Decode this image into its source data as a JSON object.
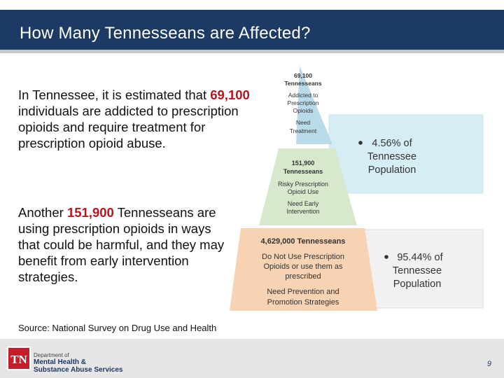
{
  "header": {
    "title": "How Many Tennesseans are Affected?"
  },
  "body": {
    "para1": {
      "before": "In Tennessee, it is estimated that ",
      "number": "69,100",
      "after": " individuals are addicted to prescription opioids and require treatment for prescription opioid abuse."
    },
    "para2": {
      "before": "Another ",
      "number": "151,900",
      "after": " Tennesseans are using prescription opioids in ways that could be harmful, and they may benefit from early intervention strategies."
    }
  },
  "pyramid": {
    "top": {
      "count": "69,100",
      "group": "Tennesseans",
      "desc1": "Addicted to",
      "desc2": "Prescription",
      "desc3": "Opioids",
      "need1": "Need",
      "need2": "Treatment"
    },
    "middle": {
      "count": "151,900",
      "group": "Tennesseans",
      "desc1": "Risky Prescription",
      "desc2": "Opioid Use",
      "need1": "Need Early",
      "need2": "Intervention"
    },
    "bottom": {
      "count": "4,629,000 Tennesseans",
      "desc1": "Do Not Use Prescription",
      "desc2": "Opioids or use them as",
      "desc3": "prescribed",
      "need1": "Need Prevention and",
      "need2": "Promotion Strategies"
    },
    "callout_upper": {
      "line1": "4.56% of",
      "line2": "Tennessee",
      "line3": "Population"
    },
    "callout_lower": {
      "line1": "95.44% of",
      "line2": "Tennessee",
      "line3": "Population"
    },
    "colors": {
      "top": "#b9dbe9",
      "middle": "#d7e8cd",
      "bottom": "#f7d2b3"
    }
  },
  "source": "Source:  National Survey on Drug Use and Health",
  "footer": {
    "logo": "TN",
    "dept_prefix": "Department of",
    "dept_line1": "Mental Health &",
    "dept_line2": "Substance Abuse Services",
    "page": "9"
  }
}
